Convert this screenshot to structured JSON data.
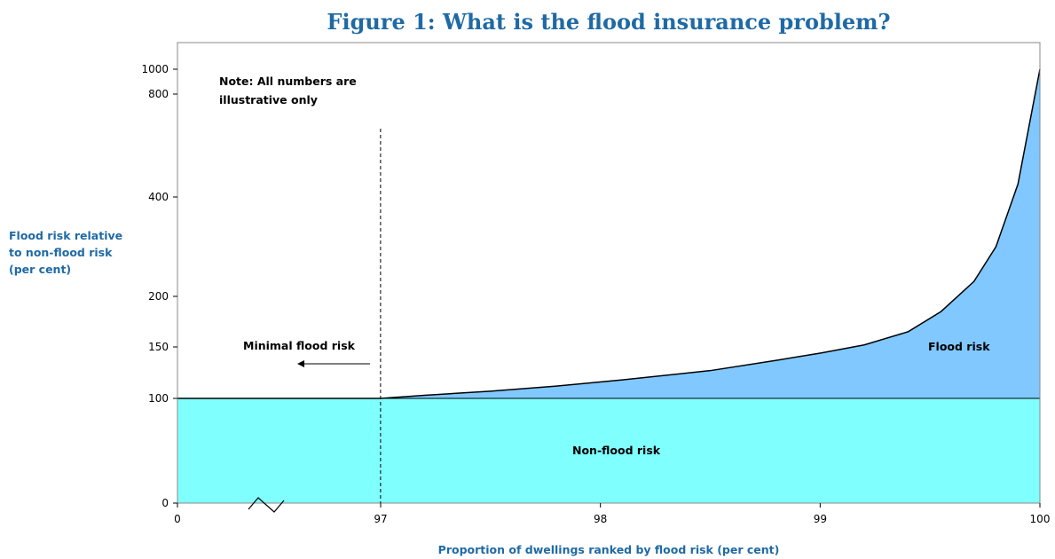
{
  "chart_data": {
    "type": "area",
    "title": "Figure 1: What is the flood insurance problem?",
    "xlabel": "Proportion of dwellings ranked by flood risk (per cent)",
    "ylabel": [
      "Flood risk relative",
      "to non-flood risk",
      "(per cent)"
    ],
    "x_ticks": [
      "0",
      "97",
      "98",
      "99",
      "100"
    ],
    "y_ticks": [
      "0",
      "100",
      "150",
      "200",
      "400",
      "800",
      "1000"
    ],
    "axis_break": true,
    "grid": false,
    "colors": {
      "non_flood": "#80ffff",
      "flood": "#80c8ff",
      "line": "#000000"
    },
    "series": [
      {
        "name": "Non-flood risk",
        "x": [
          0,
          96.95,
          100
        ],
        "y": [
          100,
          100,
          100
        ]
      },
      {
        "name": "Flood risk",
        "x": [
          0,
          96.95,
          97.2,
          97.5,
          97.8,
          98.1,
          98.5,
          98.8,
          99.0,
          99.2,
          99.4,
          99.55,
          99.7,
          99.8,
          99.9,
          100
        ],
        "y": [
          100,
          100,
          103,
          107,
          112,
          118,
          127,
          137,
          144,
          152,
          165,
          185,
          230,
          300,
          450,
          1000
        ]
      }
    ],
    "annotations": {
      "note": [
        "Note: All numbers are",
        "illustrative only"
      ],
      "minimal": "Minimal flood risk",
      "flood": "Flood risk",
      "nonflood": "Non-flood risk"
    },
    "threshold_x": 96.95
  }
}
